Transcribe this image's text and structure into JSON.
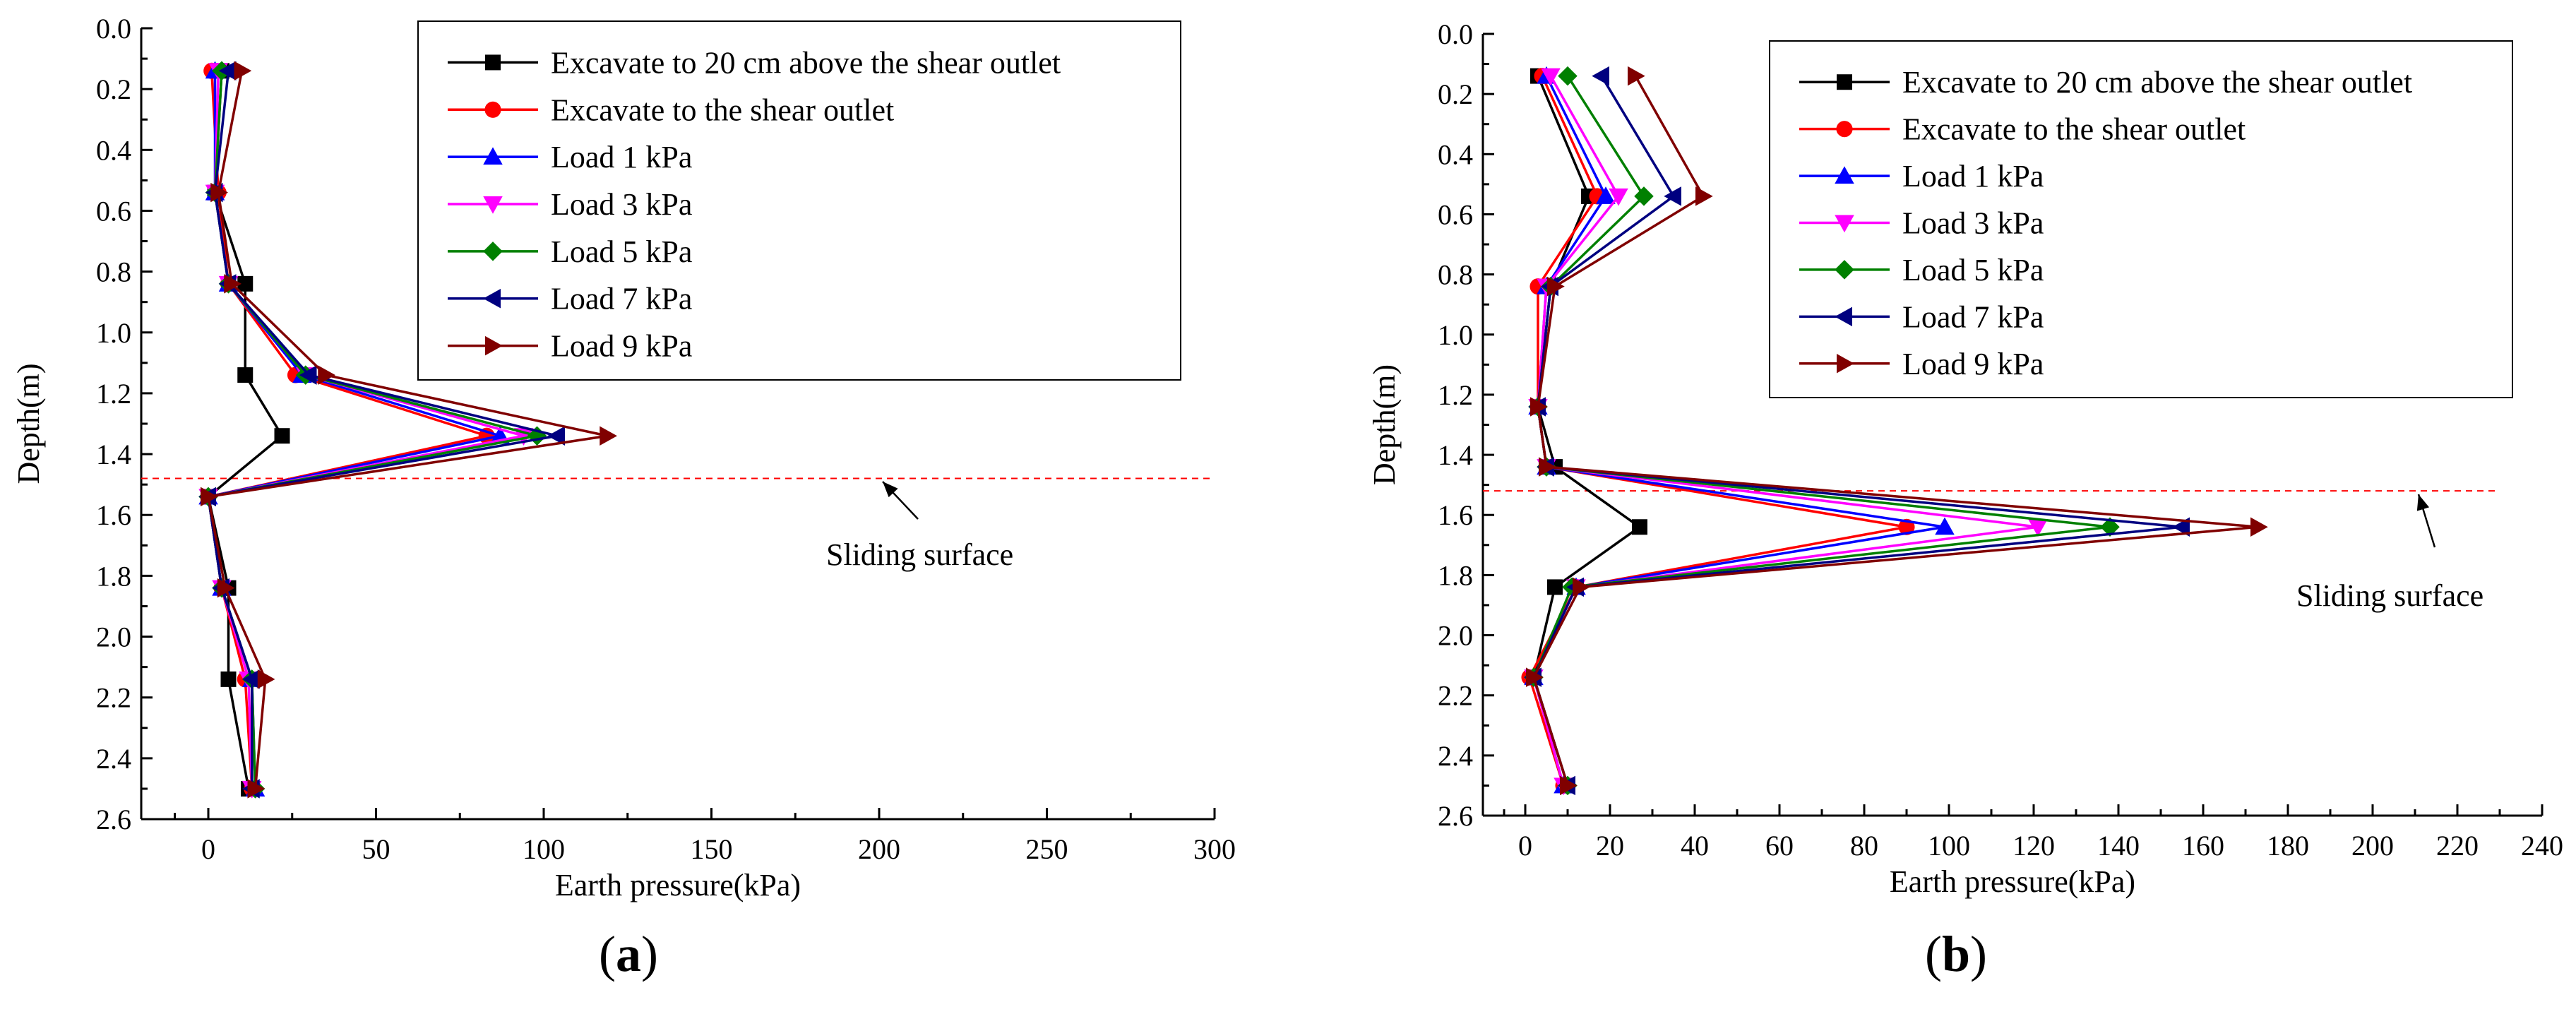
{
  "chart_data": [
    {
      "type": "line",
      "panel": "a",
      "panel_label": "a",
      "xlabel": "Earth pressure(kPa)",
      "ylabel": "Depth(m)",
      "xlim": [
        -20,
        300
      ],
      "ylim": [
        0.0,
        2.6
      ],
      "y_inverted": true,
      "xticks": [
        0,
        50,
        100,
        150,
        200,
        250,
        300
      ],
      "yticks": [
        0.0,
        0.2,
        0.4,
        0.6,
        0.8,
        1.0,
        1.2,
        1.4,
        1.6,
        1.8,
        2.0,
        2.2,
        2.4,
        2.6
      ],
      "legend_position": "top-right",
      "annotation": {
        "text": "Sliding surface",
        "depth": 1.48
      },
      "series": [
        {
          "name": "Excavate to 20 cm above the shear outlet",
          "color": "#000000",
          "marker": "square",
          "points": [
            [
              4,
              0.14
            ],
            [
              2,
              0.54
            ],
            [
              11,
              0.84
            ],
            [
              11,
              1.14
            ],
            [
              22,
              1.34
            ],
            [
              0,
              1.54
            ],
            [
              6,
              1.84
            ],
            [
              6,
              2.14
            ],
            [
              12,
              2.5
            ]
          ]
        },
        {
          "name": "Excavate to the shear outlet",
          "color": "#ff0000",
          "marker": "circle",
          "points": [
            [
              1,
              0.14
            ],
            [
              3,
              0.54
            ],
            [
              6,
              0.84
            ],
            [
              26,
              1.14
            ],
            [
              83,
              1.34
            ],
            [
              0,
              1.54
            ],
            [
              4,
              1.84
            ],
            [
              11,
              2.14
            ],
            [
              13,
              2.5
            ]
          ]
        },
        {
          "name": "Load 1 kPa",
          "color": "#0000ff",
          "marker": "triangle-up",
          "points": [
            [
              2,
              0.14
            ],
            [
              2,
              0.54
            ],
            [
              6,
              0.84
            ],
            [
              28,
              1.14
            ],
            [
              87,
              1.34
            ],
            [
              0,
              1.54
            ],
            [
              4,
              1.84
            ],
            [
              13,
              2.14
            ],
            [
              14,
              2.5
            ]
          ]
        },
        {
          "name": "Load 3 kPa",
          "color": "#ff00ff",
          "marker": "triangle-down",
          "points": [
            [
              3,
              0.14
            ],
            [
              2,
              0.54
            ],
            [
              6,
              0.84
            ],
            [
              29,
              1.14
            ],
            [
              94,
              1.34
            ],
            [
              0,
              1.54
            ],
            [
              4,
              1.84
            ],
            [
              12,
              2.14
            ],
            [
              13,
              2.5
            ]
          ]
        },
        {
          "name": "Load 5 kPa",
          "color": "#008000",
          "marker": "diamond",
          "points": [
            [
              4,
              0.14
            ],
            [
              2,
              0.54
            ],
            [
              6,
              0.84
            ],
            [
              29,
              1.14
            ],
            [
              98,
              1.34
            ],
            [
              0,
              1.54
            ],
            [
              4,
              1.84
            ],
            [
              13,
              2.14
            ],
            [
              14,
              2.5
            ]
          ]
        },
        {
          "name": "Load 7 kPa",
          "color": "#000080",
          "marker": "triangle-left",
          "points": [
            [
              6,
              0.14
            ],
            [
              2,
              0.54
            ],
            [
              6,
              0.84
            ],
            [
              30,
              1.14
            ],
            [
              104,
              1.34
            ],
            [
              0,
              1.54
            ],
            [
              4,
              1.84
            ],
            [
              13,
              2.14
            ],
            [
              13,
              2.5
            ]
          ]
        },
        {
          "name": "Load 9 kPa",
          "color": "#800000",
          "marker": "triangle-right",
          "points": [
            [
              10,
              0.14
            ],
            [
              3,
              0.54
            ],
            [
              7,
              0.84
            ],
            [
              35,
              1.14
            ],
            [
              119,
              1.34
            ],
            [
              0,
              1.54
            ],
            [
              5,
              1.84
            ],
            [
              17,
              2.14
            ],
            [
              14,
              2.5
            ]
          ]
        }
      ]
    },
    {
      "type": "line",
      "panel": "b",
      "panel_label": "b",
      "xlabel": "Earth pressure(kPa)",
      "ylabel": "Depth(m)",
      "xlim": [
        -10,
        240
      ],
      "ylim": [
        0.0,
        2.6
      ],
      "y_inverted": true,
      "xticks": [
        0,
        20,
        40,
        60,
        80,
        100,
        120,
        140,
        160,
        180,
        200,
        220,
        240
      ],
      "yticks": [
        0.0,
        0.2,
        0.4,
        0.6,
        0.8,
        1.0,
        1.2,
        1.4,
        1.6,
        1.8,
        2.0,
        2.2,
        2.4,
        2.6
      ],
      "legend_position": "top-right",
      "annotation": {
        "text": "Sliding surface",
        "depth": 1.52
      },
      "series": [
        {
          "name": "Excavate to 20 cm above the shear outlet",
          "color": "#000000",
          "marker": "square",
          "points": [
            [
              3,
              0.14
            ],
            [
              15,
              0.54
            ],
            [
              6,
              0.84
            ],
            [
              3,
              1.24
            ],
            [
              7,
              1.44
            ],
            [
              27,
              1.64
            ],
            [
              7,
              1.84
            ],
            [
              2,
              2.14
            ],
            [
              10,
              2.5
            ]
          ]
        },
        {
          "name": "Excavate to the shear outlet",
          "color": "#ff0000",
          "marker": "circle",
          "points": [
            [
              4,
              0.14
            ],
            [
              17,
              0.54
            ],
            [
              3,
              0.84
            ],
            [
              3,
              1.24
            ],
            [
              5,
              1.44
            ],
            [
              90,
              1.64
            ],
            [
              12,
              1.84
            ],
            [
              1,
              2.14
            ],
            [
              9,
              2.5
            ]
          ]
        },
        {
          "name": "Load 1 kPa",
          "color": "#0000ff",
          "marker": "triangle-up",
          "points": [
            [
              5,
              0.14
            ],
            [
              19,
              0.54
            ],
            [
              5,
              0.84
            ],
            [
              3,
              1.24
            ],
            [
              5,
              1.44
            ],
            [
              99,
              1.64
            ],
            [
              12,
              1.84
            ],
            [
              2,
              2.14
            ],
            [
              9,
              2.5
            ]
          ]
        },
        {
          "name": "Load 3 kPa",
          "color": "#ff00ff",
          "marker": "triangle-down",
          "points": [
            [
              6,
              0.14
            ],
            [
              22,
              0.54
            ],
            [
              5,
              0.84
            ],
            [
              3,
              1.24
            ],
            [
              5,
              1.44
            ],
            [
              121,
              1.64
            ],
            [
              12,
              1.84
            ],
            [
              2,
              2.14
            ],
            [
              9,
              2.5
            ]
          ]
        },
        {
          "name": "Load 5 kPa",
          "color": "#008000",
          "marker": "diamond",
          "points": [
            [
              10,
              0.14
            ],
            [
              28,
              0.54
            ],
            [
              6,
              0.84
            ],
            [
              3,
              1.24
            ],
            [
              5,
              1.44
            ],
            [
              138,
              1.64
            ],
            [
              11,
              1.84
            ],
            [
              2,
              2.14
            ],
            [
              10,
              2.5
            ]
          ]
        },
        {
          "name": "Load 7 kPa",
          "color": "#000080",
          "marker": "triangle-left",
          "points": [
            [
              18,
              0.14
            ],
            [
              35,
              0.54
            ],
            [
              6,
              0.84
            ],
            [
              3,
              1.24
            ],
            [
              5,
              1.44
            ],
            [
              155,
              1.64
            ],
            [
              12,
              1.84
            ],
            [
              2,
              2.14
            ],
            [
              10,
              2.5
            ]
          ]
        },
        {
          "name": "Load 9 kPa",
          "color": "#800000",
          "marker": "triangle-right",
          "points": [
            [
              26,
              0.14
            ],
            [
              42,
              0.54
            ],
            [
              7,
              0.84
            ],
            [
              3,
              1.24
            ],
            [
              5,
              1.44
            ],
            [
              173,
              1.64
            ],
            [
              13,
              1.84
            ],
            [
              2,
              2.14
            ],
            [
              10,
              2.5
            ]
          ]
        }
      ]
    }
  ]
}
